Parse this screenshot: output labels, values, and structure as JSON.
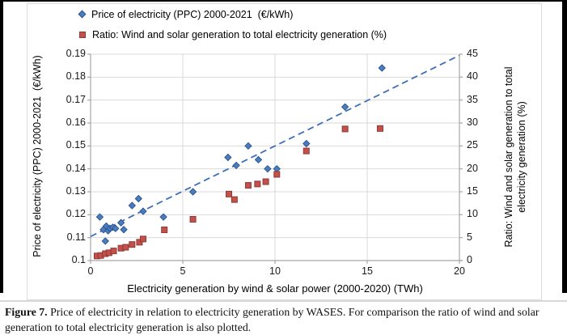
{
  "legend": {
    "price_label": "Price of electricity (PPC) 2000-2021  (€/kWh)",
    "ratio_label": "Ratio: Wind and solar generation to total electricity generation (%)"
  },
  "chart_data": {
    "type": "scatter",
    "title": "",
    "grid_color": "#d9d9d9",
    "axis_color": "#a6a6a6",
    "x_axis": {
      "label": "Electricity generation by wind & solar power (2000-2020) (TWh)",
      "min": 0,
      "max": 20,
      "ticks": [
        0,
        5,
        10,
        15,
        20
      ]
    },
    "y_left_axis": {
      "label": "Price of electricity (PPC) 2000-2021  (€/kWh)",
      "min": 0.1,
      "max": 0.19,
      "ticks": [
        "0.19",
        "0.18",
        "0.17",
        "0.16",
        "0.15",
        "0.14",
        "0.13",
        "0.12",
        "0.11",
        "0.1"
      ]
    },
    "y_right_axis": {
      "label_line1": "Ratio: Wind and solar generation to total",
      "label_line2": "electricity generation (%)",
      "min": 0,
      "max": 45,
      "ticks": [
        45,
        40,
        35,
        30,
        25,
        20,
        15,
        10,
        5,
        0
      ]
    },
    "series": [
      {
        "name": "Price of electricity (PPC) 2000-2021  (€/kWh)",
        "marker": "diamond",
        "axis": "left",
        "fill": "#4a7ebb",
        "stroke": "#2e5597",
        "points": [
          [
            0.5,
            0.119
          ],
          [
            0.7,
            0.1135
          ],
          [
            0.8,
            0.1085
          ],
          [
            0.85,
            0.115
          ],
          [
            0.95,
            0.113
          ],
          [
            1.05,
            0.114
          ],
          [
            1.2,
            0.1145
          ],
          [
            1.35,
            0.114
          ],
          [
            1.65,
            0.1165
          ],
          [
            1.8,
            0.1135
          ],
          [
            2.25,
            0.124
          ],
          [
            2.6,
            0.127
          ],
          [
            2.85,
            0.1215
          ],
          [
            3.95,
            0.119
          ],
          [
            5.55,
            0.13
          ],
          [
            7.45,
            0.145
          ],
          [
            7.9,
            0.1415
          ],
          [
            8.55,
            0.15
          ],
          [
            9.1,
            0.144
          ],
          [
            9.6,
            0.14
          ],
          [
            10.1,
            0.14
          ],
          [
            11.7,
            0.151
          ],
          [
            13.8,
            0.167
          ],
          [
            15.8,
            0.184
          ]
        ]
      },
      {
        "name": "Ratio: Wind and solar generation to total electricity generation (%)",
        "marker": "square",
        "axis": "right",
        "fill": "#c4504b",
        "stroke": "#8e3a34",
        "points": [
          [
            0.35,
            1.0
          ],
          [
            0.55,
            1.1
          ],
          [
            0.8,
            1.5
          ],
          [
            1.0,
            1.7
          ],
          [
            1.25,
            2.1
          ],
          [
            1.65,
            2.7
          ],
          [
            1.9,
            2.9
          ],
          [
            2.25,
            3.5
          ],
          [
            2.65,
            4.0
          ],
          [
            2.85,
            4.7
          ],
          [
            4.0,
            6.7
          ],
          [
            5.55,
            9.0
          ],
          [
            7.5,
            14.5
          ],
          [
            7.8,
            13.3
          ],
          [
            8.55,
            16.4
          ],
          [
            9.05,
            16.7
          ],
          [
            9.5,
            17.2
          ],
          [
            10.1,
            18.8
          ],
          [
            11.7,
            23.9
          ],
          [
            13.8,
            28.7
          ],
          [
            15.7,
            28.8
          ]
        ]
      }
    ],
    "trendline": {
      "color": "#3e6fb8",
      "style": "dashed",
      "x_start": 0,
      "y_start": 0.1105,
      "x_end": 20,
      "y_end": 0.1895
    }
  },
  "caption": {
    "prefix": "Figure 7.",
    "text": " Price of electricity in relation to electricity generation by WASES. For comparison the ratio of wind and solar generation to total electricity generation is also plotted."
  }
}
